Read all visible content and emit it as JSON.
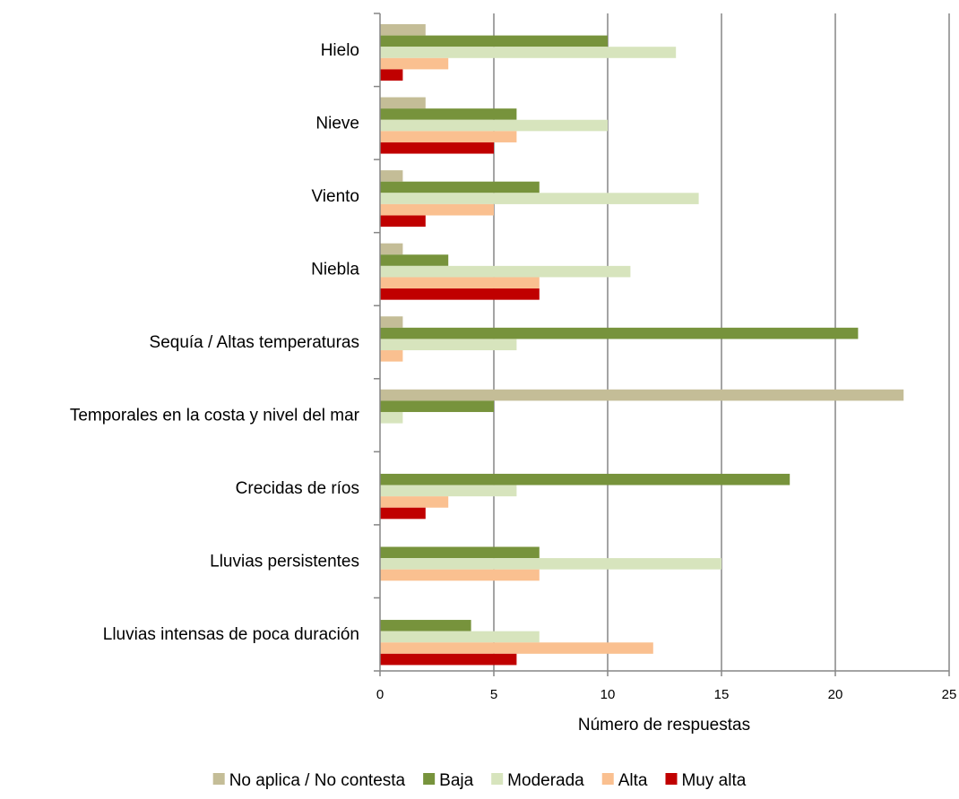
{
  "chart_data": {
    "type": "bar",
    "orientation": "horizontal",
    "categories": [
      "Hielo",
      "Nieve",
      "Viento",
      "Niebla",
      "Sequía / Altas temperaturas",
      "Temporales en la costa y nivel del mar",
      "Crecidas de ríos",
      "Lluvias persistentes",
      "Lluvias intensas de poca duración"
    ],
    "series": [
      {
        "name": "No aplica / No contesta",
        "color": "#c4bd97",
        "values": [
          2,
          2,
          1,
          1,
          1,
          23,
          0,
          0,
          0
        ]
      },
      {
        "name": "Baja",
        "color": "#77933c",
        "values": [
          10,
          6,
          7,
          3,
          21,
          5,
          18,
          7,
          4
        ]
      },
      {
        "name": "Moderada",
        "color": "#d7e4bd",
        "values": [
          13,
          10,
          14,
          11,
          6,
          1,
          6,
          15,
          7
        ]
      },
      {
        "name": "Alta",
        "color": "#fac090",
        "values": [
          3,
          6,
          5,
          7,
          1,
          0,
          3,
          7,
          12
        ]
      },
      {
        "name": "Muy alta",
        "color": "#c00000",
        "values": [
          1,
          5,
          2,
          7,
          0,
          0,
          2,
          0,
          6
        ]
      }
    ],
    "xlabel": "Número de respuestas",
    "ylabel": "",
    "xlim": [
      0,
      25
    ],
    "xticks": [
      0,
      5,
      10,
      15,
      20,
      25
    ],
    "grid": true,
    "legend_position": "bottom"
  }
}
